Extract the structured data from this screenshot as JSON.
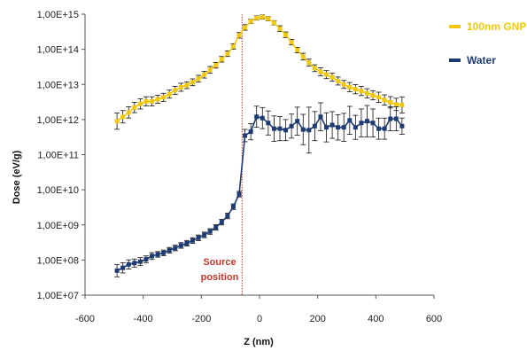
{
  "chart_data": {
    "type": "line",
    "xlabel": "Z (nm)",
    "ylabel": "Dose (eV/g)",
    "xlim": [
      -600,
      600
    ],
    "ylim": [
      10000000,
      1000000000000000
    ],
    "yscale": "log",
    "x_ticks": [
      "-600",
      "-400",
      "-200",
      "0",
      "200",
      "400",
      "600"
    ],
    "y_ticks": [
      "1,00E+07",
      "1,00E+08",
      "1,00E+09",
      "1,00E+10",
      "1,00E+11",
      "1,00E+12",
      "1,00E+13",
      "1,00E+14",
      "1,00E+15"
    ],
    "grid": false,
    "legend_position": "top-right",
    "annotation": {
      "line1": "Source",
      "line2": "position",
      "x": -60,
      "color": "#c0392b"
    },
    "colors": {
      "gnp": "#f2c80f",
      "water": "#1f3b73",
      "source_line": "#c0392b"
    },
    "series": [
      {
        "name": "100nm GNP",
        "x": [
          -490,
          -470,
          -450,
          -430,
          -410,
          -390,
          -370,
          -350,
          -330,
          -310,
          -290,
          -270,
          -250,
          -230,
          -210,
          -190,
          -170,
          -150,
          -130,
          -110,
          -90,
          -70,
          -50,
          -30,
          -10,
          10,
          30,
          50,
          70,
          90,
          110,
          130,
          150,
          170,
          190,
          210,
          230,
          250,
          270,
          290,
          310,
          330,
          350,
          370,
          390,
          410,
          430,
          450,
          470,
          490
        ],
        "y": [
          900000000000.0,
          1200000000000.0,
          1600000000000.0,
          2200000000000.0,
          2800000000000.0,
          3300000000000.0,
          3300000000000.0,
          3800000000000.0,
          4300000000000.0,
          5300000000000.0,
          6800000000000.0,
          8300000000000.0,
          9500000000000.0,
          11500000000000.0,
          14500000000000.0,
          19000000000000.0,
          26000000000000.0,
          35000000000000.0,
          52000000000000.0,
          75000000000000.0,
          120000000000000.0,
          250000000000000.0,
          420000000000000.0,
          620000000000000.0,
          780000000000000.0,
          830000000000000.0,
          740000000000000.0,
          570000000000000.0,
          390000000000000.0,
          260000000000000.0,
          160000000000000.0,
          95000000000000.0,
          62000000000000.0,
          42000000000000.0,
          29000000000000.0,
          23000000000000.0,
          19000000000000.0,
          16000000000000.0,
          12500000000000.0,
          10000000000000.0,
          8400000000000.0,
          7300000000000.0,
          6500000000000.0,
          5600000000000.0,
          4900000000000.0,
          4300000000000.0,
          3600000000000.0,
          3100000000000.0,
          2700000000000.0,
          2600000000000.0
        ],
        "err_factor": [
          1.7,
          1.5,
          1.45,
          1.4,
          1.4,
          1.35,
          1.35,
          1.3,
          1.3,
          1.3,
          1.3,
          1.3,
          1.25,
          1.25,
          1.25,
          1.25,
          1.25,
          1.2,
          1.2,
          1.2,
          1.2,
          1.2,
          1.2,
          1.15,
          1.15,
          1.15,
          1.15,
          1.15,
          1.2,
          1.2,
          1.2,
          1.2,
          1.25,
          1.25,
          1.25,
          1.3,
          1.3,
          1.3,
          1.3,
          1.3,
          1.35,
          1.35,
          1.35,
          1.35,
          1.35,
          1.4,
          1.4,
          1.45,
          1.5,
          1.7
        ]
      },
      {
        "name": "Water",
        "x": [
          -490,
          -470,
          -450,
          -430,
          -410,
          -390,
          -370,
          -350,
          -330,
          -310,
          -290,
          -270,
          -250,
          -230,
          -210,
          -190,
          -170,
          -150,
          -130,
          -110,
          -90,
          -70,
          -50,
          -30,
          -10,
          10,
          30,
          50,
          70,
          90,
          110,
          130,
          150,
          170,
          190,
          210,
          230,
          250,
          270,
          290,
          310,
          330,
          350,
          370,
          390,
          410,
          430,
          450,
          470,
          490
        ],
        "y": [
          50000000.0,
          60000000.0,
          75000000.0,
          82000000.0,
          90000000.0,
          105000000.0,
          130000000.0,
          145000000.0,
          160000000.0,
          190000000.0,
          220000000.0,
          260000000.0,
          300000000.0,
          360000000.0,
          430000000.0,
          520000000.0,
          650000000.0,
          850000000.0,
          1200000000.0,
          1800000000.0,
          3300000000.0,
          7500000000.0,
          350000000000.0,
          450000000000.0,
          1200000000000.0,
          1100000000000.0,
          800000000000.0,
          550000000000.0,
          550000000000.0,
          500000000000.0,
          650000000000.0,
          900000000000.0,
          520000000000.0,
          500000000000.0,
          650000000000.0,
          1200000000000.0,
          600000000000.0,
          700000000000.0,
          600000000000.0,
          600000000000.0,
          950000000000.0,
          600000000000.0,
          800000000000.0,
          900000000000.0,
          800000000000.0,
          550000000000.0,
          550000000000.0,
          1050000000000.0,
          1050000000000.0,
          650000000000.0
        ],
        "err_factor": [
          1.5,
          1.4,
          1.35,
          1.3,
          1.3,
          1.25,
          1.25,
          1.2,
          1.2,
          1.2,
          1.2,
          1.2,
          1.2,
          1.2,
          1.2,
          1.2,
          1.2,
          1.2,
          1.2,
          1.2,
          1.2,
          1.2,
          1.5,
          1.7,
          2.0,
          2.0,
          2.2,
          2.3,
          2.2,
          2.0,
          2.2,
          2.5,
          2.7,
          4.5,
          2.6,
          2.5,
          2.6,
          2.4,
          2.3,
          2.5,
          2.5,
          2.2,
          2.5,
          2.8,
          2.5,
          2.0,
          2.0,
          2.2,
          2.2,
          1.7
        ]
      }
    ]
  }
}
